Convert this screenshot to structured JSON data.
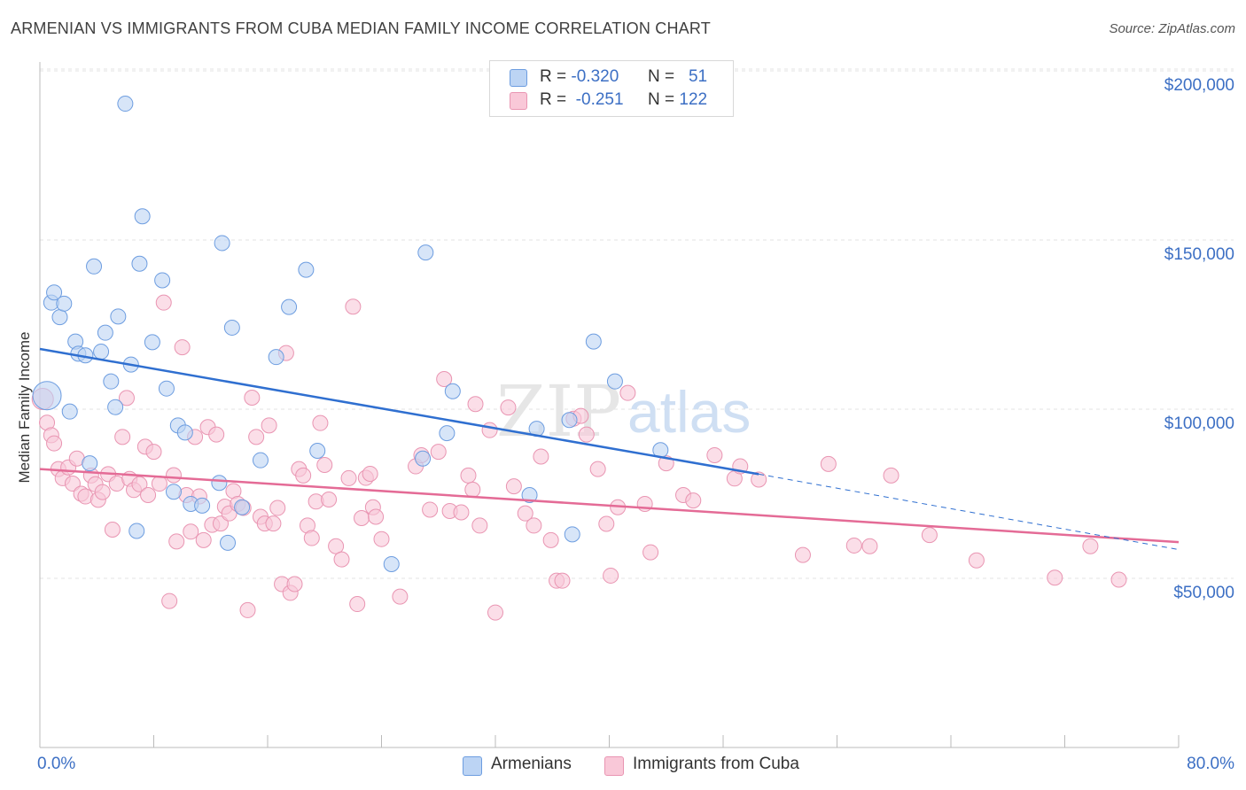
{
  "title": "ARMENIAN VS IMMIGRANTS FROM CUBA MEDIAN FAMILY INCOME CORRELATION CHART",
  "source": "Source: ZipAtlas.com",
  "watermark": {
    "zip": "ZIP",
    "atlas": "atlas"
  },
  "legend_top": {
    "rows": [
      {
        "r_label": "R =",
        "r_value": "-0.320",
        "n_label": "N =",
        "n_value": "51"
      },
      {
        "r_label": "R =",
        "r_value": "-0.251",
        "n_label": "N =",
        "n_value": "122"
      }
    ]
  },
  "legend_bottom": [
    {
      "label": "Armenians"
    },
    {
      "label": "Immigrants from Cuba"
    }
  ],
  "colors": {
    "armenians_fill": "#bcd4f4",
    "armenians_stroke": "#6d9de0",
    "armenians_line": "#2f6fd0",
    "cuba_fill": "#f9c8d8",
    "cuba_stroke": "#e995b2",
    "cuba_line": "#e46b96",
    "tick_text": "#3c6fc4",
    "grid": "#e3e3e3"
  },
  "chart_data": {
    "type": "scatter",
    "title": "ARMENIAN VS IMMIGRANTS FROM CUBA MEDIAN FAMILY INCOME CORRELATION CHART",
    "xlabel": "",
    "ylabel": "Median Family Income",
    "xlim": [
      0,
      80
    ],
    "ylim": [
      0,
      205000
    ],
    "x_tick_labels": [
      "0.0%",
      "80.0%"
    ],
    "y_ticks": [
      50000,
      100000,
      150000,
      200000
    ],
    "y_tick_labels": [
      "$50,000",
      "$100,000",
      "$150,000",
      "$200,000"
    ],
    "grid": true,
    "legend_placement": "top-center",
    "series": [
      {
        "name": "Armenians",
        "R": -0.32,
        "N": 51,
        "trend": {
          "x": [
            0,
            50.5
          ],
          "y": [
            117800,
            80800
          ]
        },
        "trend_extension": {
          "x": [
            50.5,
            80
          ],
          "y": [
            80800,
            58500
          ]
        },
        "points": [
          [
            0.5,
            104000
          ],
          [
            0.8,
            131500
          ],
          [
            1.0,
            134500
          ],
          [
            1.4,
            127200
          ],
          [
            1.7,
            131200
          ],
          [
            2.1,
            99300
          ],
          [
            2.5,
            120000
          ],
          [
            2.7,
            116400
          ],
          [
            3.2,
            115900
          ],
          [
            3.5,
            84000
          ],
          [
            3.8,
            142200
          ],
          [
            4.3,
            117000
          ],
          [
            4.6,
            122600
          ],
          [
            5.0,
            108200
          ],
          [
            5.3,
            100600
          ],
          [
            5.5,
            127400
          ],
          [
            6.0,
            190300
          ],
          [
            6.4,
            113200
          ],
          [
            6.8,
            64000
          ],
          [
            7.0,
            143000
          ],
          [
            7.2,
            157000
          ],
          [
            7.9,
            119800
          ],
          [
            8.6,
            138100
          ],
          [
            8.9,
            106100
          ],
          [
            9.4,
            75600
          ],
          [
            9.7,
            95200
          ],
          [
            10.2,
            93100
          ],
          [
            10.6,
            72000
          ],
          [
            11.4,
            71500
          ],
          [
            12.6,
            78200
          ],
          [
            12.8,
            149100
          ],
          [
            13.2,
            60500
          ],
          [
            13.5,
            124100
          ],
          [
            14.2,
            71000
          ],
          [
            15.5,
            84900
          ],
          [
            16.6,
            115400
          ],
          [
            17.5,
            130200
          ],
          [
            18.7,
            141200
          ],
          [
            19.5,
            87700
          ],
          [
            24.7,
            54200
          ],
          [
            26.9,
            85400
          ],
          [
            27.1,
            146300
          ],
          [
            28.6,
            92900
          ],
          [
            29.0,
            105300
          ],
          [
            34.4,
            74600
          ],
          [
            34.9,
            94200
          ],
          [
            37.2,
            96800
          ],
          [
            37.4,
            63000
          ],
          [
            38.9,
            120000
          ],
          [
            40.4,
            108200
          ],
          [
            43.6,
            87900
          ]
        ]
      },
      {
        "name": "Immigrants from Cuba",
        "R": -0.251,
        "N": 122,
        "trend": {
          "x": [
            0,
            80
          ],
          "y": [
            82300,
            60700
          ]
        },
        "points": [
          [
            0.2,
            103000
          ],
          [
            0.5,
            96000
          ],
          [
            0.8,
            92300
          ],
          [
            1.0,
            89900
          ],
          [
            1.3,
            82300
          ],
          [
            1.6,
            79600
          ],
          [
            2.0,
            82800
          ],
          [
            2.3,
            78000
          ],
          [
            2.6,
            85400
          ],
          [
            2.9,
            75000
          ],
          [
            3.2,
            74200
          ],
          [
            3.6,
            80400
          ],
          [
            3.9,
            77800
          ],
          [
            4.1,
            73200
          ],
          [
            4.4,
            75500
          ],
          [
            4.8,
            80800
          ],
          [
            5.1,
            64400
          ],
          [
            5.4,
            78000
          ],
          [
            5.8,
            91800
          ],
          [
            6.1,
            103300
          ],
          [
            6.3,
            79400
          ],
          [
            6.6,
            76100
          ],
          [
            7.0,
            77800
          ],
          [
            7.4,
            88900
          ],
          [
            7.6,
            74600
          ],
          [
            8.0,
            87400
          ],
          [
            8.4,
            78000
          ],
          [
            8.7,
            131500
          ],
          [
            9.1,
            43300
          ],
          [
            9.4,
            80500
          ],
          [
            9.6,
            60900
          ],
          [
            10.0,
            118300
          ],
          [
            10.3,
            74600
          ],
          [
            10.6,
            63800
          ],
          [
            10.9,
            91800
          ],
          [
            11.2,
            74200
          ],
          [
            11.5,
            61300
          ],
          [
            11.8,
            94700
          ],
          [
            12.1,
            65800
          ],
          [
            12.4,
            92500
          ],
          [
            12.7,
            66200
          ],
          [
            13.0,
            71200
          ],
          [
            13.3,
            69200
          ],
          [
            13.6,
            75800
          ],
          [
            13.9,
            72000
          ],
          [
            14.3,
            70800
          ],
          [
            14.6,
            40600
          ],
          [
            14.9,
            103400
          ],
          [
            15.2,
            91800
          ],
          [
            15.5,
            68200
          ],
          [
            15.8,
            66200
          ],
          [
            16.1,
            95200
          ],
          [
            16.4,
            66200
          ],
          [
            16.7,
            70800
          ],
          [
            17.0,
            48300
          ],
          [
            17.3,
            116600
          ],
          [
            17.6,
            45700
          ],
          [
            17.9,
            48300
          ],
          [
            18.2,
            82300
          ],
          [
            18.5,
            80400
          ],
          [
            18.8,
            65600
          ],
          [
            19.1,
            61900
          ],
          [
            19.4,
            72700
          ],
          [
            19.7,
            95900
          ],
          [
            20.0,
            83500
          ],
          [
            20.3,
            73300
          ],
          [
            20.8,
            59500
          ],
          [
            21.2,
            55600
          ],
          [
            21.7,
            79600
          ],
          [
            22.0,
            130300
          ],
          [
            22.3,
            42400
          ],
          [
            22.6,
            67800
          ],
          [
            22.9,
            79700
          ],
          [
            23.2,
            80900
          ],
          [
            23.4,
            71000
          ],
          [
            23.6,
            68200
          ],
          [
            24.0,
            61600
          ],
          [
            25.3,
            44600
          ],
          [
            26.4,
            83100
          ],
          [
            26.8,
            86400
          ],
          [
            27.4,
            70300
          ],
          [
            28.0,
            87400
          ],
          [
            28.4,
            108900
          ],
          [
            28.8,
            69900
          ],
          [
            29.6,
            69500
          ],
          [
            30.1,
            80400
          ],
          [
            30.4,
            76200
          ],
          [
            30.6,
            101500
          ],
          [
            30.9,
            65600
          ],
          [
            31.6,
            93800
          ],
          [
            32.0,
            39900
          ],
          [
            32.9,
            100500
          ],
          [
            33.3,
            77200
          ],
          [
            34.1,
            69200
          ],
          [
            34.7,
            65600
          ],
          [
            35.2,
            86000
          ],
          [
            35.9,
            61300
          ],
          [
            36.3,
            49300
          ],
          [
            36.7,
            49300
          ],
          [
            37.5,
            97200
          ],
          [
            38.0,
            98000
          ],
          [
            38.4,
            92500
          ],
          [
            39.2,
            82300
          ],
          [
            39.8,
            66100
          ],
          [
            40.1,
            50800
          ],
          [
            40.6,
            71000
          ],
          [
            41.3,
            104800
          ],
          [
            42.5,
            72000
          ],
          [
            42.9,
            57700
          ],
          [
            44.0,
            84000
          ],
          [
            45.2,
            74600
          ],
          [
            45.9,
            73000
          ],
          [
            47.4,
            86400
          ],
          [
            48.8,
            79500
          ],
          [
            49.2,
            83100
          ],
          [
            50.5,
            79200
          ],
          [
            53.6,
            56900
          ],
          [
            55.4,
            83800
          ],
          [
            57.2,
            59700
          ],
          [
            58.3,
            59500
          ],
          [
            59.8,
            80400
          ],
          [
            62.5,
            62800
          ],
          [
            65.8,
            55300
          ],
          [
            71.3,
            50200
          ],
          [
            73.8,
            59500
          ],
          [
            75.8,
            49600
          ]
        ]
      }
    ]
  }
}
